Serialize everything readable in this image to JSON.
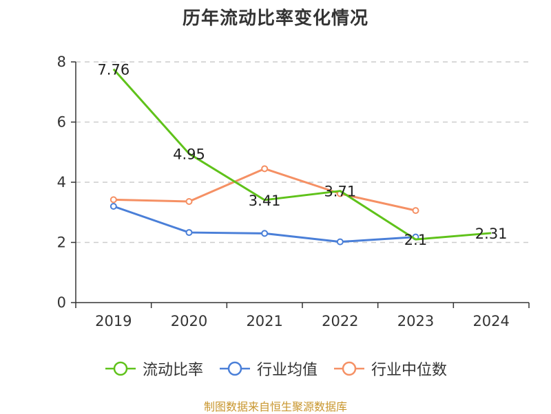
{
  "title": "历年流动比率变化情况",
  "source": "制图数据来自恒生聚源数据库",
  "colors": {
    "current_ratio": "#5fc21a",
    "industry_mean": "#4a7fd8",
    "industry_median": "#f59064",
    "grid": "#cccccc",
    "axis": "#333333"
  },
  "chart_data": {
    "type": "line",
    "title": "历年流动比率变化情况",
    "categories": [
      "2019",
      "2020",
      "2021",
      "2022",
      "2023",
      "2024"
    ],
    "ylim": [
      0,
      8
    ],
    "yticks": [
      0,
      2,
      4,
      6,
      8
    ],
    "grid": true,
    "legend_position": "bottom",
    "series": [
      {
        "name": "流动比率",
        "color": "#5fc21a",
        "values": [
          7.76,
          4.95,
          3.41,
          3.71,
          2.1,
          2.31
        ],
        "labels": [
          "7.76",
          "4.95",
          "3.41",
          "3.71",
          "2.1",
          "2.31"
        ]
      },
      {
        "name": "行业均值",
        "color": "#4a7fd8",
        "values": [
          3.2,
          2.33,
          2.3,
          2.02,
          2.18,
          null
        ]
      },
      {
        "name": "行业中位数",
        "color": "#f59064",
        "values": [
          3.42,
          3.36,
          4.45,
          3.62,
          3.06,
          null
        ]
      }
    ]
  }
}
